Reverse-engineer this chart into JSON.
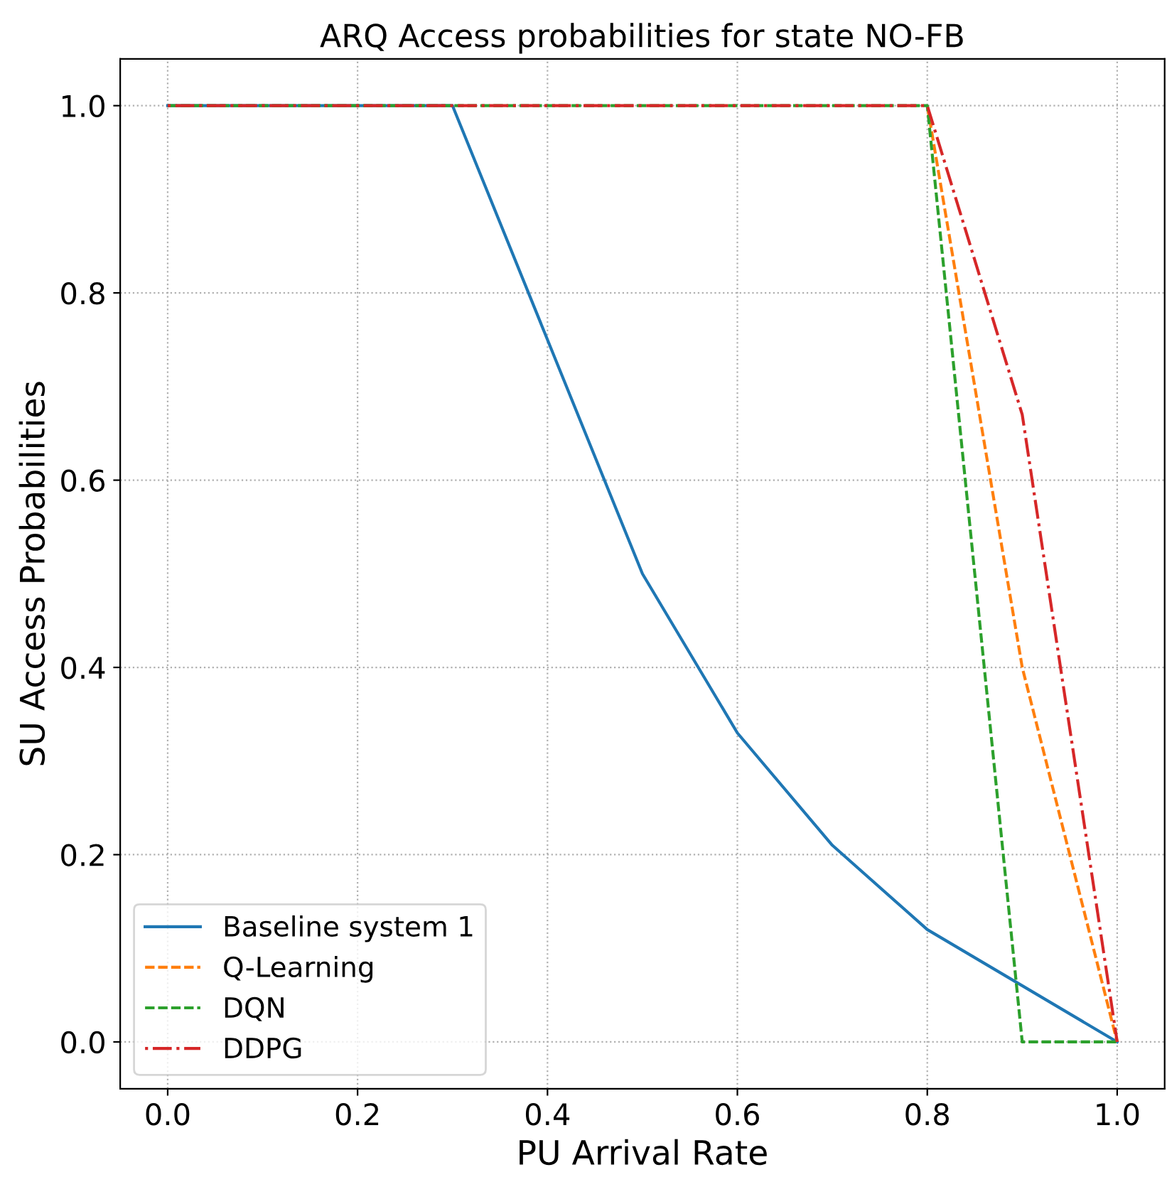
{
  "chart_data": {
    "type": "line",
    "title": "ARQ Access probabilities for state NO-FB",
    "xlabel": "PU Arrival Rate",
    "ylabel": "SU Access Probabilities",
    "x": [
      0.0,
      0.1,
      0.2,
      0.3,
      0.4,
      0.5,
      0.6,
      0.7,
      0.8,
      0.9,
      1.0
    ],
    "series": [
      {
        "name": "Baseline system 1",
        "color": "#1f77b4",
        "line_style": "solid",
        "values": [
          1,
          1,
          1,
          1,
          0.75,
          0.5,
          0.33,
          0.21,
          0.12,
          0.06,
          0
        ]
      },
      {
        "name": "Q-Learning",
        "color": "#ff7f0e",
        "line_style": "dashed",
        "values": [
          null,
          null,
          null,
          null,
          null,
          null,
          null,
          null,
          1,
          0.4,
          0
        ]
      },
      {
        "name": "DQN",
        "color": "#2ca02c",
        "line_style": "dashed",
        "values": [
          1,
          1,
          1,
          1,
          1,
          1,
          1,
          1,
          1,
          0,
          0
        ]
      },
      {
        "name": "DDPG",
        "color": "#d62728",
        "line_style": "dashdot",
        "values": [
          1,
          1,
          1,
          1,
          1,
          1,
          1,
          1,
          1,
          0.67,
          0
        ]
      }
    ],
    "xlim": [
      -0.05,
      1.05
    ],
    "ylim": [
      -0.05,
      1.05
    ],
    "xticks": [
      {
        "value": 0,
        "label": "0.0"
      },
      0.2,
      0.4,
      0.6,
      0.8,
      {
        "value": 1,
        "label": "1.0"
      }
    ],
    "yticks": [
      {
        "value": 0,
        "label": "0.0"
      },
      0.2,
      0.4,
      0.6,
      0.8,
      {
        "value": 1,
        "label": "1.0"
      }
    ],
    "grid": true,
    "legend": "bottom left",
    "marker": "none"
  }
}
